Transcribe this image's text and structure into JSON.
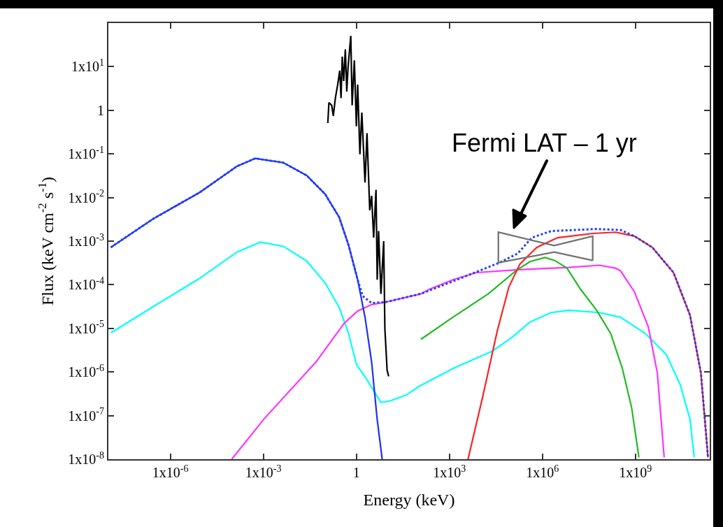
{
  "chart_data": {
    "type": "line",
    "xlabel": "Energy (keV)",
    "ylabel": "Flux (keV cm$^{-2}$ s$^{-1}$)",
    "log": "xy",
    "grid": false,
    "xlim": [
      1e-08,
      250000000000.0
    ],
    "ylim": [
      1e-08,
      100
    ],
    "xticks": [
      {
        "value": 1e-06,
        "label": "1x10$^{-6}$"
      },
      {
        "value": 0.001,
        "label": "1x10$^{-3}$"
      },
      1,
      {
        "value": 1000.0,
        "label": "1x10$^{3}$"
      },
      {
        "value": 1000000.0,
        "label": "1x10$^{6}$"
      },
      {
        "value": 1000000000.0,
        "label": "1x10$^{9}$"
      }
    ],
    "yticks": [
      {
        "value": 1e-08,
        "label": "1x10$^{-8}$"
      },
      {
        "value": 1e-07,
        "label": "1x10$^{-7}$"
      },
      {
        "value": 1e-06,
        "label": "1x10$^{-6}$"
      },
      {
        "value": 1e-05,
        "label": "1x10$^{-5}$"
      },
      {
        "value": 0.0001,
        "label": "1x10$^{-4}$"
      },
      {
        "value": 0.001,
        "label": "1x10$^{-3}$"
      },
      {
        "value": 0.01,
        "label": "1x10$^{-2}$"
      },
      {
        "value": 0.1,
        "label": "1x10$^{-1}$"
      },
      1,
      {
        "value": 10,
        "label": "1x10$^{1}$"
      }
    ],
    "annotations": [
      "Fermi LAT – 1 yr"
    ],
    "series": [
      {
        "color": "#00ffff",
        "line_style": "solid",
        "x": [
          1.2e-08,
          2.9e-07,
          8.7e-06,
          0.00014,
          0.00079,
          0.0044,
          0.025,
          0.098,
          0.28,
          0.56,
          1,
          2.2,
          6.2,
          13,
          42,
          100,
          1300.0,
          24000.0,
          98000.0,
          400000.0,
          1900000.0,
          7100000.0,
          69000000.0,
          330000000.0,
          2100000000.0,
          10000000000.0,
          28000000000.0,
          58000000000.0,
          79000000000.0
        ],
        "values": [
          7.9e-06,
          3.2e-05,
          0.00014,
          0.00056,
          0.00095,
          0.00076,
          0.00035,
          0.00011,
          3e-05,
          7.6e-06,
          1.5e-06,
          6.6e-07,
          2e-07,
          2.2e-07,
          3e-07,
          4.6e-07,
          1.2e-06,
          3e-06,
          6e-06,
          1.4e-05,
          2.3e-05,
          2.6e-05,
          2.3e-05,
          1.8e-05,
          7.6e-06,
          2.5e-06,
          5.1e-07,
          8.1e-08,
          1.1e-08
        ]
      },
      {
        "color": "#ff33ff",
        "line_style": "solid",
        "x": [
          9.5e-05,
          0.0011,
          0.05,
          0.4,
          1.1,
          3.1,
          8.8,
          120,
          230,
          1300.0,
          7400.0,
          140000.0,
          7100000.0,
          69000000.0,
          230000000.0,
          330000000.0,
          930000000.0,
          2600000000.0,
          5100000000.0,
          8500000000.0
        ],
        "values": [
          1e-08,
          8.7e-08,
          1.7e-06,
          1.3e-05,
          2.5e-05,
          3.5e-05,
          4e-05,
          6.2e-05,
          7.9e-05,
          0.00013,
          0.00019,
          0.00022,
          0.00025,
          0.00028,
          0.00024,
          0.00021,
          6.9e-05,
          1.1e-05,
          9.5e-07,
          1.1e-08
        ]
      },
      {
        "color": "#22bb22",
        "line_style": "solid",
        "x": [
          120,
          1300.0,
          18000.0,
          140000.0,
          400000.0,
          1200000.0,
          2500000.0,
          6200000.0,
          17000000.0,
          56000000.0,
          160000000.0,
          380000000.0,
          760000000.0,
          1300000000.0
        ],
        "values": [
          5.6e-06,
          1.8e-05,
          6.2e-05,
          0.00021,
          0.00034,
          0.00042,
          0.00036,
          0.00024,
          7.9e-05,
          2.6e-05,
          7.6e-06,
          1.2e-06,
          1.5e-07,
          1.1e-08
        ]
      },
      {
        "color": "#ff2020",
        "line_style": "solid",
        "x": [
          4000.0,
          12000.0,
          35000.0,
          83000.0,
          190000.0,
          660000.0,
          3100000.0,
          42000000.0,
          230000000.0,
          930000000.0,
          3500000000.0,
          17000000000.0,
          58000000000.0,
          130000000000.0,
          220000000000.0
        ],
        "values": [
          1e-08,
          2.8e-07,
          8.7e-06,
          8.9e-05,
          0.0003,
          0.00072,
          0.0012,
          0.0015,
          0.0016,
          0.0013,
          0.00072,
          0.00019,
          2e-05,
          9.5e-07,
          1.1e-08
        ]
      },
      {
        "color": "#1f2ff0",
        "line_style": "solid",
        "x": [
          1.2e-08,
          2.9e-07,
          8.7e-06,
          0.00014,
          0.00055,
          0.0044,
          0.025,
          0.098,
          0.28,
          0.56,
          1.1,
          1.9,
          3.1,
          4.7,
          6.8
        ],
        "values": [
          0.00072,
          0.0033,
          0.013,
          0.052,
          0.079,
          0.063,
          0.032,
          0.012,
          0.0035,
          0.00081,
          0.00013,
          1.8e-05,
          1.7e-06,
          8.1e-08,
          1e-08
        ]
      },
      {
        "color": "#2040ff",
        "line_style": "dotted",
        "x": [
          1.2e-08,
          2.9e-07,
          8.7e-06,
          0.00014,
          0.00055,
          0.0044,
          0.025,
          0.098,
          0.28,
          0.56,
          1.1,
          1.6,
          3.1,
          8.8,
          120,
          1300.0,
          41000.0,
          160000.0,
          460000.0,
          1900000.0,
          56000000.0,
          330000000.0,
          930000000.0,
          3500000000.0,
          17000000000.0,
          58000000000.0,
          130000000000.0,
          220000000000.0
        ],
        "values": [
          0.00072,
          0.0033,
          0.013,
          0.052,
          0.079,
          0.063,
          0.032,
          0.012,
          0.0035,
          0.00081,
          0.00013,
          5.5e-05,
          3.8e-05,
          4e-05,
          6.2e-05,
          0.00012,
          0.00032,
          0.00052,
          0.0012,
          0.0017,
          0.0019,
          0.0018,
          0.0013,
          0.00072,
          0.00019,
          2e-05,
          9.5e-07,
          1.1e-08
        ]
      },
      {
        "color": "#000000",
        "line_style": "solid",
        "x": [
          0.12,
          0.13,
          0.16,
          0.18,
          0.21,
          0.25,
          0.29,
          0.32,
          0.35,
          0.39,
          0.44,
          0.49,
          0.54,
          0.66,
          0.73,
          0.86,
          1,
          1.1,
          1.3,
          1.5,
          1.9,
          2.2,
          2.7,
          3.1,
          3.6,
          4.3,
          4.7,
          5.2,
          6.2,
          7.6,
          8.3,
          9.8,
          11
        ],
        "values": [
          0.51,
          1.5,
          1.3,
          0.74,
          1.9,
          3.9,
          8.1,
          1.9,
          17,
          4.7,
          25,
          2.7,
          9.8,
          51,
          1.3,
          14,
          0.43,
          3.9,
          0.098,
          0.89,
          0.022,
          0.3,
          0.0051,
          0.011,
          0.0012,
          0.015,
          0.00013,
          0.0017,
          6.2e-05,
          0.001,
          1e-05,
          1.1e-06,
          7.9e-07
        ]
      },
      {
        "color": "#707070",
        "line_style": "solid",
        "x": [
          38000.0,
          38000.0,
          2400000.0,
          42000000.0,
          42000000.0
        ],
        "values": [
          0.00032,
          0.0016,
          0.00079,
          0.0013,
          0.00036
        ]
      },
      {
        "color": "#707070",
        "line_style": "solid",
        "x": [
          38000.0,
          2400000.0,
          42000000.0
        ],
        "values": [
          0.00032,
          0.00056,
          0.00036
        ]
      }
    ]
  }
}
